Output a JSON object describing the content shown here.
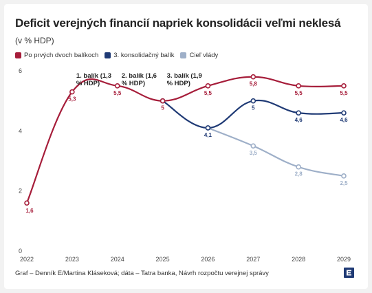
{
  "title": "Deficit verejných financií napriek konsolidácii veľmi neklesá",
  "subtitle": "(v % HDP)",
  "legend": [
    {
      "label": "Po prvých dvoch balíkoch",
      "color": "#a61d3a"
    },
    {
      "label": "3. konsolidačný balík",
      "color": "#1f3a75"
    },
    {
      "label": "Cieľ vlády",
      "color": "#9eafc8"
    }
  ],
  "footer": "Graf – Denník E/Martina Kláseková; dáta – Tatra banka, Návrh rozpočtu verejnej správy",
  "logo_icon": "denník-e-logo-icon",
  "chart_data": {
    "type": "line",
    "title": "Deficit verejných financií napriek konsolidácii veľmi neklesá",
    "subtitle": "(v % HDP)",
    "x": [
      2022,
      2023,
      2024,
      2025,
      2026,
      2027,
      2028,
      2029
    ],
    "ylim": [
      0,
      6
    ],
    "yticks": [
      0,
      2,
      4,
      6
    ],
    "grid": false,
    "legend_position": "top-left",
    "series": [
      {
        "name": "Po prvých dvoch balíkoch",
        "color": "#a61d3a",
        "values": [
          1.6,
          5.3,
          5.5,
          5.0,
          5.5,
          5.8,
          5.5,
          5.5
        ],
        "labels": [
          "1,6",
          "5,3",
          "5,5",
          "5",
          "5,5",
          "5,8",
          "5,5",
          "5,5"
        ]
      },
      {
        "name": "3. konsolidačný balík",
        "color": "#1f3a75",
        "x": [
          2025,
          2026,
          2027,
          2028,
          2029
        ],
        "values": [
          5.0,
          4.1,
          5.0,
          4.6,
          4.6
        ],
        "labels": [
          "",
          "4,1",
          "5",
          "4,6",
          "4,6"
        ]
      },
      {
        "name": "Cieľ vlády",
        "color": "#9eafc8",
        "x": [
          2026,
          2027,
          2028,
          2029
        ],
        "values": [
          4.1,
          3.5,
          2.8,
          2.5
        ],
        "labels": [
          "",
          "3,5",
          "2,8",
          "2,5"
        ]
      }
    ],
    "annotations": [
      {
        "x": 2023,
        "lines": [
          "1. balík (1,3",
          "% HDP)"
        ]
      },
      {
        "x": 2024,
        "lines": [
          "2. balík (1,6",
          "% HDP)"
        ]
      },
      {
        "x": 2025,
        "lines": [
          "3. balík (1,9",
          "% HDP)"
        ]
      }
    ]
  }
}
